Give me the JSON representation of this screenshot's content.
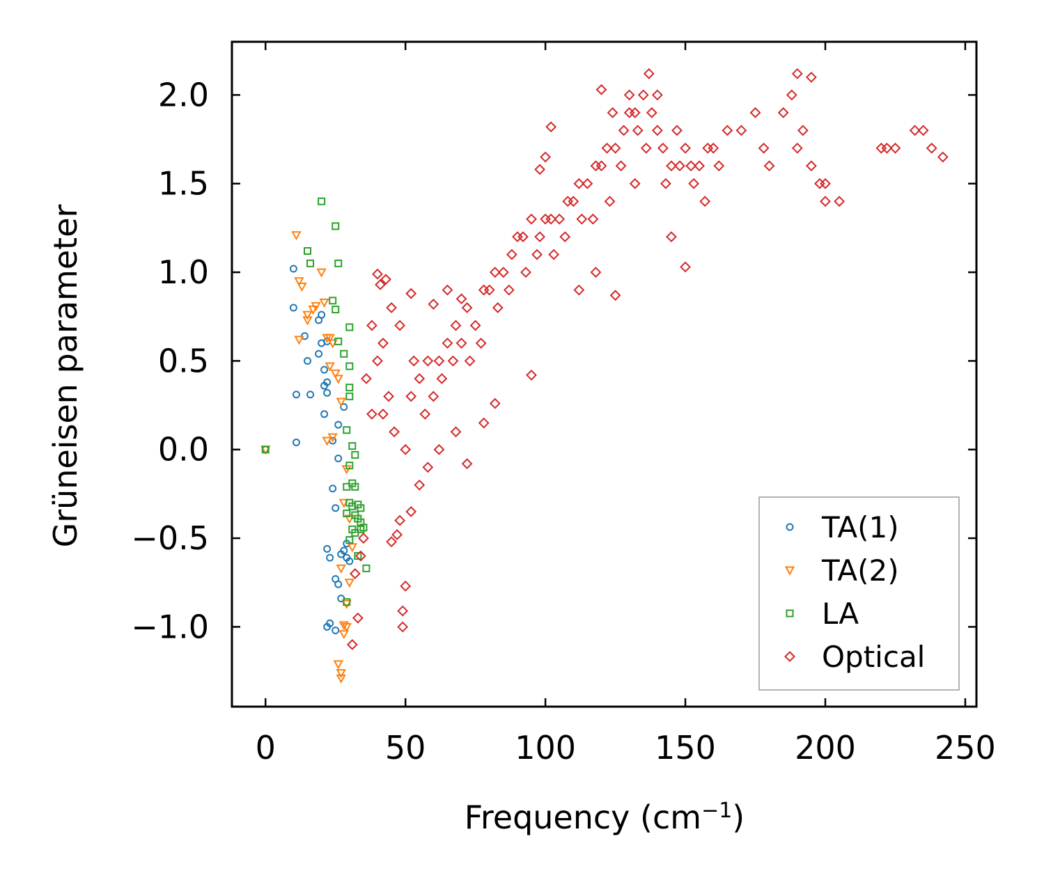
{
  "chart_data": {
    "type": "scatter",
    "title": "",
    "xlabel": "Frequency (cm",
    "xlabel_sup": "−1",
    "xlabel_end": ")",
    "ylabel": "Grüneisen parameter",
    "xlim": [
      -12,
      254
    ],
    "ylim": [
      -1.45,
      2.3
    ],
    "xticks": [
      0,
      50,
      100,
      150,
      200,
      250
    ],
    "yticks": [
      -1.0,
      -0.5,
      0.0,
      0.5,
      1.0,
      1.5,
      2.0
    ],
    "xtick_labels": [
      "0",
      "50",
      "100",
      "150",
      "200",
      "250"
    ],
    "ytick_labels": [
      "−1.0",
      "−0.5",
      "0.0",
      "0.5",
      "1.0",
      "1.5",
      "2.0"
    ],
    "legend_position": "lower-right",
    "series": [
      {
        "name": "TA(1)",
        "marker": "circle",
        "color": "#1f77b4",
        "points": [
          [
            0,
            0
          ],
          [
            10,
            1.02
          ],
          [
            10,
            0.8
          ],
          [
            11,
            0.31
          ],
          [
            11,
            0.04
          ],
          [
            14,
            0.64
          ],
          [
            15,
            0.5
          ],
          [
            16,
            0.31
          ],
          [
            19,
            0.73
          ],
          [
            19,
            0.54
          ],
          [
            20,
            0.76
          ],
          [
            20,
            0.6
          ],
          [
            21,
            0.36
          ],
          [
            21,
            0.45
          ],
          [
            21,
            0.2
          ],
          [
            22,
            0.61
          ],
          [
            22,
            0.38
          ],
          [
            22,
            0.32
          ],
          [
            22,
            -0.56
          ],
          [
            22,
            -1.0
          ],
          [
            23,
            -0.61
          ],
          [
            23,
            -0.98
          ],
          [
            24,
            0.05
          ],
          [
            24,
            -0.22
          ],
          [
            25,
            -0.73
          ],
          [
            25,
            -0.33
          ],
          [
            25,
            -1.02
          ],
          [
            26,
            0.14
          ],
          [
            26,
            -0.05
          ],
          [
            26,
            -0.76
          ],
          [
            27,
            -0.59
          ],
          [
            27,
            -0.84
          ],
          [
            28,
            -0.57
          ],
          [
            28,
            0.24
          ],
          [
            29,
            -0.53
          ],
          [
            29,
            -0.61
          ],
          [
            30,
            -0.63
          ]
        ]
      },
      {
        "name": "TA(2)",
        "marker": "triangle-down",
        "color": "#ff7f0e",
        "points": [
          [
            0,
            0
          ],
          [
            11,
            1.21
          ],
          [
            12,
            0.95
          ],
          [
            12,
            0.62
          ],
          [
            13,
            0.92
          ],
          [
            15,
            0.76
          ],
          [
            15,
            0.73
          ],
          [
            17,
            0.79
          ],
          [
            18,
            0.81
          ],
          [
            20,
            1.0
          ],
          [
            21,
            0.83
          ],
          [
            22,
            0.63
          ],
          [
            22,
            0.05
          ],
          [
            23,
            0.63
          ],
          [
            23,
            0.47
          ],
          [
            24,
            0.6
          ],
          [
            24,
            0.07
          ],
          [
            25,
            0.43
          ],
          [
            26,
            0.4
          ],
          [
            26,
            -1.21
          ],
          [
            27,
            0.27
          ],
          [
            27,
            -1.26
          ],
          [
            27,
            -1.29
          ],
          [
            27,
            -0.67
          ],
          [
            28,
            -0.99
          ],
          [
            28,
            -1.04
          ],
          [
            28,
            -0.3
          ],
          [
            29,
            -0.11
          ],
          [
            29,
            -0.87
          ],
          [
            29,
            -1.0
          ],
          [
            30,
            -0.39
          ],
          [
            30,
            -0.75
          ],
          [
            31,
            -0.55
          ]
        ]
      },
      {
        "name": "LA",
        "marker": "square",
        "color": "#2ca02c",
        "points": [
          [
            0,
            0
          ],
          [
            20,
            1.4
          ],
          [
            15,
            1.12
          ],
          [
            16,
            1.05
          ],
          [
            25,
            1.26
          ],
          [
            26,
            1.05
          ],
          [
            24,
            0.84
          ],
          [
            25,
            0.79
          ],
          [
            26,
            0.61
          ],
          [
            28,
            0.54
          ],
          [
            30,
            0.69
          ],
          [
            30,
            0.47
          ],
          [
            30,
            0.35
          ],
          [
            30,
            0.3
          ],
          [
            29,
            0.11
          ],
          [
            31,
            0.02
          ],
          [
            32,
            -0.03
          ],
          [
            30,
            -0.09
          ],
          [
            31,
            -0.19
          ],
          [
            32,
            -0.21
          ],
          [
            29,
            -0.21
          ],
          [
            30,
            -0.3
          ],
          [
            31,
            -0.32
          ],
          [
            33,
            -0.31
          ],
          [
            34,
            -0.33
          ],
          [
            32,
            -0.37
          ],
          [
            29,
            -0.36
          ],
          [
            33,
            -0.39
          ],
          [
            34,
            -0.41
          ],
          [
            31,
            -0.45
          ],
          [
            32,
            -0.47
          ],
          [
            34,
            -0.45
          ],
          [
            35,
            -0.44
          ],
          [
            30,
            -0.51
          ],
          [
            33,
            -0.6
          ],
          [
            36,
            -0.67
          ],
          [
            29,
            -0.86
          ]
        ]
      },
      {
        "name": "Optical",
        "marker": "diamond",
        "color": "#d62728",
        "points": [
          [
            35,
            -0.5
          ],
          [
            38,
            0.2
          ],
          [
            40,
            0.5
          ],
          [
            42,
            0.6
          ],
          [
            44,
            0.3
          ],
          [
            46,
            0.1
          ],
          [
            48,
            -0.4
          ],
          [
            50,
            0.0
          ],
          [
            52,
            0.3
          ],
          [
            55,
            0.4
          ],
          [
            58,
            0.5
          ],
          [
            60,
            0.3
          ],
          [
            62,
            0.5
          ],
          [
            65,
            0.6
          ],
          [
            68,
            0.7
          ],
          [
            70,
            0.6
          ],
          [
            72,
            0.8
          ],
          [
            75,
            0.7
          ],
          [
            78,
            0.9
          ],
          [
            80,
            0.9
          ],
          [
            82,
            1.0
          ],
          [
            85,
            1.0
          ],
          [
            88,
            1.1
          ],
          [
            90,
            1.2
          ],
          [
            92,
            1.2
          ],
          [
            95,
            1.3
          ],
          [
            98,
            1.2
          ],
          [
            100,
            1.3
          ],
          [
            102,
            1.3
          ],
          [
            105,
            1.3
          ],
          [
            108,
            1.4
          ],
          [
            110,
            1.4
          ],
          [
            112,
            1.5
          ],
          [
            115,
            1.5
          ],
          [
            118,
            1.6
          ],
          [
            120,
            1.6
          ],
          [
            122,
            1.7
          ],
          [
            125,
            1.7
          ],
          [
            128,
            1.8
          ],
          [
            130,
            1.9
          ],
          [
            132,
            1.9
          ],
          [
            135,
            2.0
          ],
          [
            138,
            1.9
          ],
          [
            140,
            1.8
          ],
          [
            142,
            1.7
          ],
          [
            145,
            1.6
          ],
          [
            148,
            1.6
          ],
          [
            150,
            1.7
          ],
          [
            152,
            1.6
          ],
          [
            155,
            1.6
          ],
          [
            158,
            1.7
          ],
          [
            160,
            1.7
          ],
          [
            165,
            1.8
          ],
          [
            170,
            1.8
          ],
          [
            175,
            1.9
          ],
          [
            178,
            1.7
          ],
          [
            180,
            1.6
          ],
          [
            185,
            1.9
          ],
          [
            188,
            2.0
          ],
          [
            190,
            1.7
          ],
          [
            192,
            1.8
          ],
          [
            195,
            1.6
          ],
          [
            198,
            1.5
          ],
          [
            200,
            1.5
          ],
          [
            205,
            1.4
          ],
          [
            220,
            1.7
          ],
          [
            222,
            1.7
          ],
          [
            225,
            1.7
          ],
          [
            232,
            1.8
          ],
          [
            235,
            1.8
          ],
          [
            238,
            1.7
          ],
          [
            242,
            1.65
          ],
          [
            50,
            -0.77
          ],
          [
            49,
            -0.91
          ],
          [
            49,
            -1.0
          ],
          [
            45,
            -0.52
          ],
          [
            40,
            0.99
          ],
          [
            41,
            0.93
          ],
          [
            43,
            0.96
          ],
          [
            52,
            0.88
          ],
          [
            60,
            0.82
          ],
          [
            65,
            0.9
          ],
          [
            70,
            0.85
          ],
          [
            102,
            1.82
          ],
          [
            98,
            1.58
          ],
          [
            100,
            1.65
          ],
          [
            120,
            2.03
          ],
          [
            124,
            1.9
          ],
          [
            130,
            2.0
          ],
          [
            137,
            2.12
          ],
          [
            140,
            2.0
          ],
          [
            190,
            2.12
          ],
          [
            195,
            2.1
          ],
          [
            200,
            1.4
          ],
          [
            150,
            1.03
          ],
          [
            145,
            1.2
          ],
          [
            132,
            1.5
          ],
          [
            136,
            1.7
          ],
          [
            125,
            0.87
          ],
          [
            118,
            1.0
          ],
          [
            112,
            0.9
          ],
          [
            95,
            0.42
          ],
          [
            82,
            0.26
          ],
          [
            78,
            0.15
          ],
          [
            72,
            -0.08
          ],
          [
            68,
            0.1
          ],
          [
            62,
            0.0
          ],
          [
            58,
            -0.1
          ],
          [
            55,
            -0.2
          ],
          [
            52,
            -0.35
          ],
          [
            47,
            -0.48
          ],
          [
            33,
            -0.95
          ],
          [
            31,
            -1.1
          ],
          [
            32,
            -0.7
          ],
          [
            34,
            -0.6
          ],
          [
            36,
            0.4
          ],
          [
            38,
            0.7
          ],
          [
            42,
            0.2
          ],
          [
            45,
            0.8
          ],
          [
            48,
            0.7
          ],
          [
            53,
            0.5
          ],
          [
            57,
            0.2
          ],
          [
            63,
            0.4
          ],
          [
            67,
            0.5
          ],
          [
            73,
            0.5
          ],
          [
            77,
            0.6
          ],
          [
            83,
            0.8
          ],
          [
            87,
            0.9
          ],
          [
            93,
            1.0
          ],
          [
            97,
            1.1
          ],
          [
            103,
            1.1
          ],
          [
            107,
            1.2
          ],
          [
            113,
            1.3
          ],
          [
            117,
            1.3
          ],
          [
            123,
            1.4
          ],
          [
            127,
            1.6
          ],
          [
            133,
            1.8
          ],
          [
            143,
            1.5
          ],
          [
            147,
            1.8
          ],
          [
            153,
            1.5
          ],
          [
            157,
            1.4
          ],
          [
            162,
            1.6
          ]
        ]
      }
    ]
  }
}
